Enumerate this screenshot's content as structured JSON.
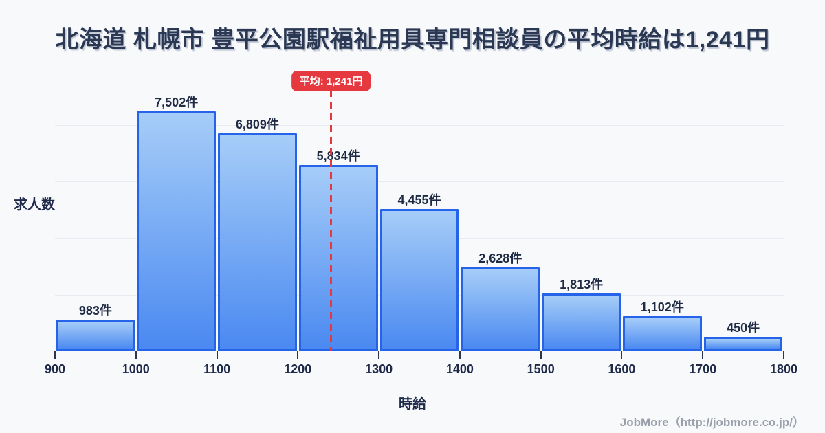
{
  "title": "北海道 札幌市 豊平公園駅福祉用具専門相談員の平均時給は1,241円",
  "chart_data": {
    "type": "bar",
    "subtype": "histogram",
    "title": "北海道 札幌市 豊平公園駅福祉用具専門相談員の平均時給は1,241円",
    "xlabel": "時給",
    "ylabel": "求人数",
    "xlim": [
      900,
      1800
    ],
    "bin_width": 100,
    "bin_edges": [
      900,
      1000,
      1100,
      1200,
      1300,
      1400,
      1500,
      1600,
      1700,
      1800
    ],
    "x_ticks": [
      "900",
      "1000",
      "1100",
      "1200",
      "1300",
      "1400",
      "1500",
      "1600",
      "1700",
      "1800"
    ],
    "values": [
      983,
      7502,
      6809,
      5834,
      4455,
      2628,
      1813,
      1102,
      450
    ],
    "value_labels": [
      "983件",
      "7,502件",
      "6,809件",
      "5,834件",
      "4,455件",
      "2,628件",
      "1,813件",
      "1,102件",
      "450件"
    ],
    "average": {
      "value": 1241,
      "label": "平均: 1,241円"
    },
    "grid": true,
    "legend": null
  },
  "footer": {
    "credit": "JobMore（http://jobmore.co.jp/）"
  },
  "colors": {
    "background": "#f8f9fb",
    "bar_gradient_top": "#a6cdf8",
    "bar_gradient_bottom": "#4a89f1",
    "bar_border": "#2563e8",
    "accent_red": "#e5383f",
    "text_dark": "#202b4b",
    "gridline": "#e8ecf2",
    "footer_gray": "#9aa0ab"
  }
}
